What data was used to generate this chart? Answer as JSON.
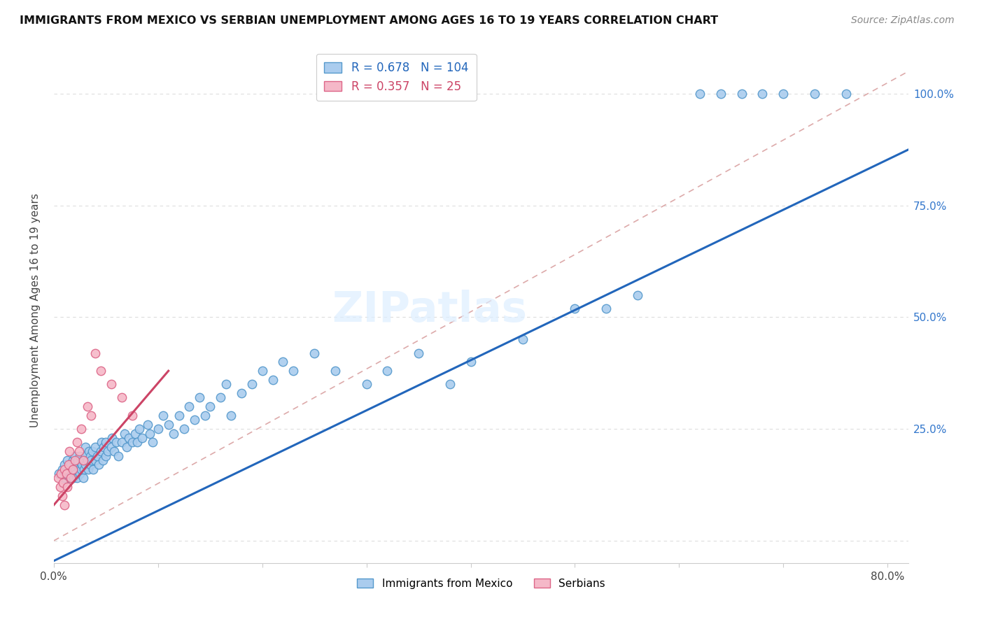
{
  "title": "IMMIGRANTS FROM MEXICO VS SERBIAN UNEMPLOYMENT AMONG AGES 16 TO 19 YEARS CORRELATION CHART",
  "source": "Source: ZipAtlas.com",
  "ylabel": "Unemployment Among Ages 16 to 19 years",
  "xlim": [
    0.0,
    0.82
  ],
  "ylim": [
    -0.05,
    1.08
  ],
  "blue_R": 0.678,
  "blue_N": 104,
  "pink_R": 0.357,
  "pink_N": 25,
  "blue_color": "#aaccee",
  "pink_color": "#f5b8c8",
  "blue_edge_color": "#5599cc",
  "pink_edge_color": "#dd6688",
  "blue_line_color": "#2266bb",
  "pink_line_color": "#cc4466",
  "blue_scatter_x": [
    0.005,
    0.008,
    0.01,
    0.01,
    0.012,
    0.013,
    0.015,
    0.015,
    0.016,
    0.017,
    0.018,
    0.018,
    0.019,
    0.02,
    0.02,
    0.021,
    0.022,
    0.022,
    0.023,
    0.024,
    0.025,
    0.025,
    0.026,
    0.027,
    0.028,
    0.028,
    0.029,
    0.03,
    0.03,
    0.03,
    0.032,
    0.033,
    0.034,
    0.035,
    0.035,
    0.036,
    0.037,
    0.038,
    0.04,
    0.04,
    0.042,
    0.043,
    0.045,
    0.046,
    0.047,
    0.048,
    0.05,
    0.05,
    0.052,
    0.055,
    0.056,
    0.058,
    0.06,
    0.062,
    0.065,
    0.068,
    0.07,
    0.072,
    0.075,
    0.078,
    0.08,
    0.082,
    0.085,
    0.09,
    0.092,
    0.095,
    0.1,
    0.105,
    0.11,
    0.115,
    0.12,
    0.125,
    0.13,
    0.135,
    0.14,
    0.145,
    0.15,
    0.16,
    0.165,
    0.17,
    0.18,
    0.19,
    0.2,
    0.21,
    0.22,
    0.23,
    0.25,
    0.27,
    0.3,
    0.32,
    0.35,
    0.38,
    0.4,
    0.45,
    0.5,
    0.53,
    0.56,
    0.62,
    0.64,
    0.66,
    0.68,
    0.7,
    0.73,
    0.76
  ],
  "blue_scatter_y": [
    0.15,
    0.16,
    0.14,
    0.17,
    0.15,
    0.18,
    0.16,
    0.14,
    0.17,
    0.15,
    0.16,
    0.18,
    0.14,
    0.16,
    0.19,
    0.15,
    0.17,
    0.14,
    0.18,
    0.16,
    0.15,
    0.19,
    0.16,
    0.17,
    0.14,
    0.18,
    0.16,
    0.17,
    0.19,
    0.21,
    0.18,
    0.16,
    0.2,
    0.17,
    0.19,
    0.18,
    0.2,
    0.16,
    0.18,
    0.21,
    0.19,
    0.17,
    0.2,
    0.22,
    0.18,
    0.21,
    0.19,
    0.22,
    0.2,
    0.21,
    0.23,
    0.2,
    0.22,
    0.19,
    0.22,
    0.24,
    0.21,
    0.23,
    0.22,
    0.24,
    0.22,
    0.25,
    0.23,
    0.26,
    0.24,
    0.22,
    0.25,
    0.28,
    0.26,
    0.24,
    0.28,
    0.25,
    0.3,
    0.27,
    0.32,
    0.28,
    0.3,
    0.32,
    0.35,
    0.28,
    0.33,
    0.35,
    0.38,
    0.36,
    0.4,
    0.38,
    0.42,
    0.38,
    0.35,
    0.38,
    0.42,
    0.35,
    0.4,
    0.45,
    0.52,
    0.52,
    0.55,
    1.0,
    1.0,
    1.0,
    1.0,
    1.0,
    1.0,
    1.0
  ],
  "pink_scatter_x": [
    0.004,
    0.006,
    0.007,
    0.008,
    0.009,
    0.01,
    0.01,
    0.012,
    0.013,
    0.014,
    0.015,
    0.016,
    0.018,
    0.02,
    0.022,
    0.024,
    0.026,
    0.028,
    0.032,
    0.036,
    0.04,
    0.045,
    0.055,
    0.065,
    0.075
  ],
  "pink_scatter_y": [
    0.14,
    0.12,
    0.15,
    0.1,
    0.13,
    0.16,
    0.08,
    0.15,
    0.12,
    0.17,
    0.2,
    0.14,
    0.16,
    0.18,
    0.22,
    0.2,
    0.25,
    0.18,
    0.3,
    0.28,
    0.42,
    0.38,
    0.35,
    0.32,
    0.28
  ],
  "blue_line_x0": 0.0,
  "blue_line_y0": -0.045,
  "blue_line_x1": 0.82,
  "blue_line_y1": 0.875,
  "pink_line_x0": 0.0,
  "pink_line_y0": 0.08,
  "pink_line_x1": 0.11,
  "pink_line_y1": 0.38,
  "ref_line_color": "#ddaaaa",
  "ref_line_x0": 0.0,
  "ref_line_y0": 0.0,
  "ref_line_x1": 0.82,
  "ref_line_y1": 1.05,
  "watermark": "ZIPatlas",
  "grid_color": "#dddddd"
}
